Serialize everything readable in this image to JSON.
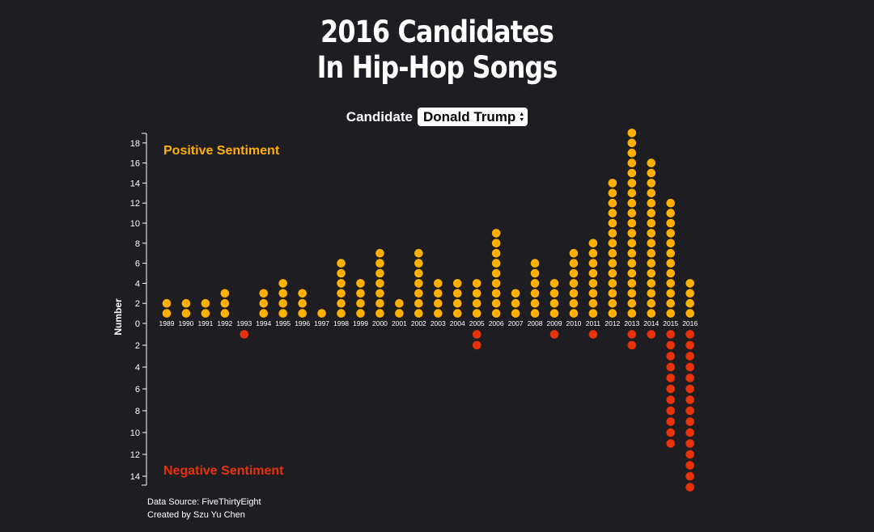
{
  "page": {
    "title_line1": "2016 Candidates",
    "title_line2": "In Hip-Hop Songs",
    "selector_label": "Candidate",
    "selected_candidate": "Donald Trump",
    "footer_source": "Data Source: FiveThirtyEight",
    "footer_credit": "Created by Szu Yu Chen"
  },
  "chart_data": {
    "type": "scatter",
    "ylabel": "Number",
    "positive_label": "Positive Sentiment",
    "negative_label": "Negative Sentiment",
    "positive_color": "#ffb000",
    "negative_color": "#e8320a",
    "positive_ylim": [
      0,
      19
    ],
    "negative_ylim": [
      0,
      15
    ],
    "positive_ticks": [
      0,
      2,
      4,
      6,
      8,
      10,
      12,
      14,
      16,
      18
    ],
    "negative_ticks": [
      2,
      4,
      6,
      8,
      10,
      12,
      14
    ],
    "categories": [
      "1989",
      "1990",
      "1991",
      "1992",
      "1993",
      "1994",
      "1995",
      "1996",
      "1997",
      "1998",
      "1999",
      "2000",
      "2001",
      "2002",
      "2003",
      "2004",
      "2005",
      "2006",
      "2007",
      "2008",
      "2009",
      "2010",
      "2011",
      "2012",
      "2013",
      "2014",
      "2015",
      "2016"
    ],
    "series": [
      {
        "name": "Positive Sentiment",
        "values": [
          2,
          2,
          2,
          3,
          0,
          3,
          4,
          3,
          1,
          6,
          4,
          7,
          2,
          7,
          4,
          4,
          4,
          9,
          3,
          6,
          4,
          7,
          8,
          14,
          19,
          16,
          12,
          4
        ]
      },
      {
        "name": "Negative Sentiment",
        "values": [
          0,
          0,
          0,
          0,
          1,
          0,
          0,
          0,
          0,
          0,
          0,
          0,
          0,
          0,
          0,
          0,
          2,
          0,
          0,
          0,
          1,
          0,
          1,
          0,
          2,
          1,
          11,
          15
        ]
      }
    ]
  }
}
